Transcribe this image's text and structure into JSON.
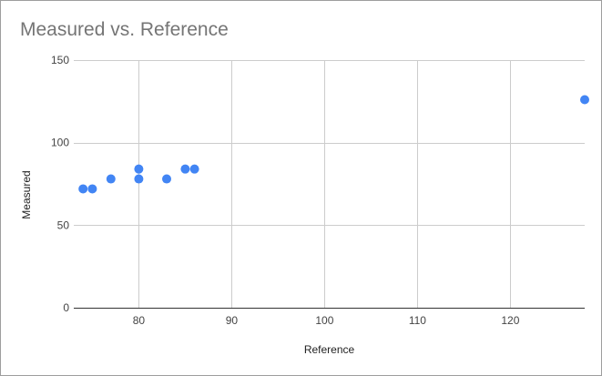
{
  "chart_data": {
    "type": "scatter",
    "title": "Measured vs. Reference",
    "xlabel": "Reference",
    "ylabel": "Measured",
    "xlim": [
      73,
      128
    ],
    "ylim": [
      0,
      150
    ],
    "xticks": [
      80,
      90,
      100,
      110,
      120
    ],
    "yticks": [
      0,
      50,
      100,
      150
    ],
    "grid": true,
    "legend": "none",
    "point_color": "#4285f4",
    "points": [
      {
        "x": 74,
        "y": 72
      },
      {
        "x": 75,
        "y": 72
      },
      {
        "x": 77,
        "y": 78
      },
      {
        "x": 80,
        "y": 84
      },
      {
        "x": 80,
        "y": 78
      },
      {
        "x": 83,
        "y": 78
      },
      {
        "x": 85,
        "y": 84
      },
      {
        "x": 86,
        "y": 84
      },
      {
        "x": 128,
        "y": 126
      }
    ]
  }
}
